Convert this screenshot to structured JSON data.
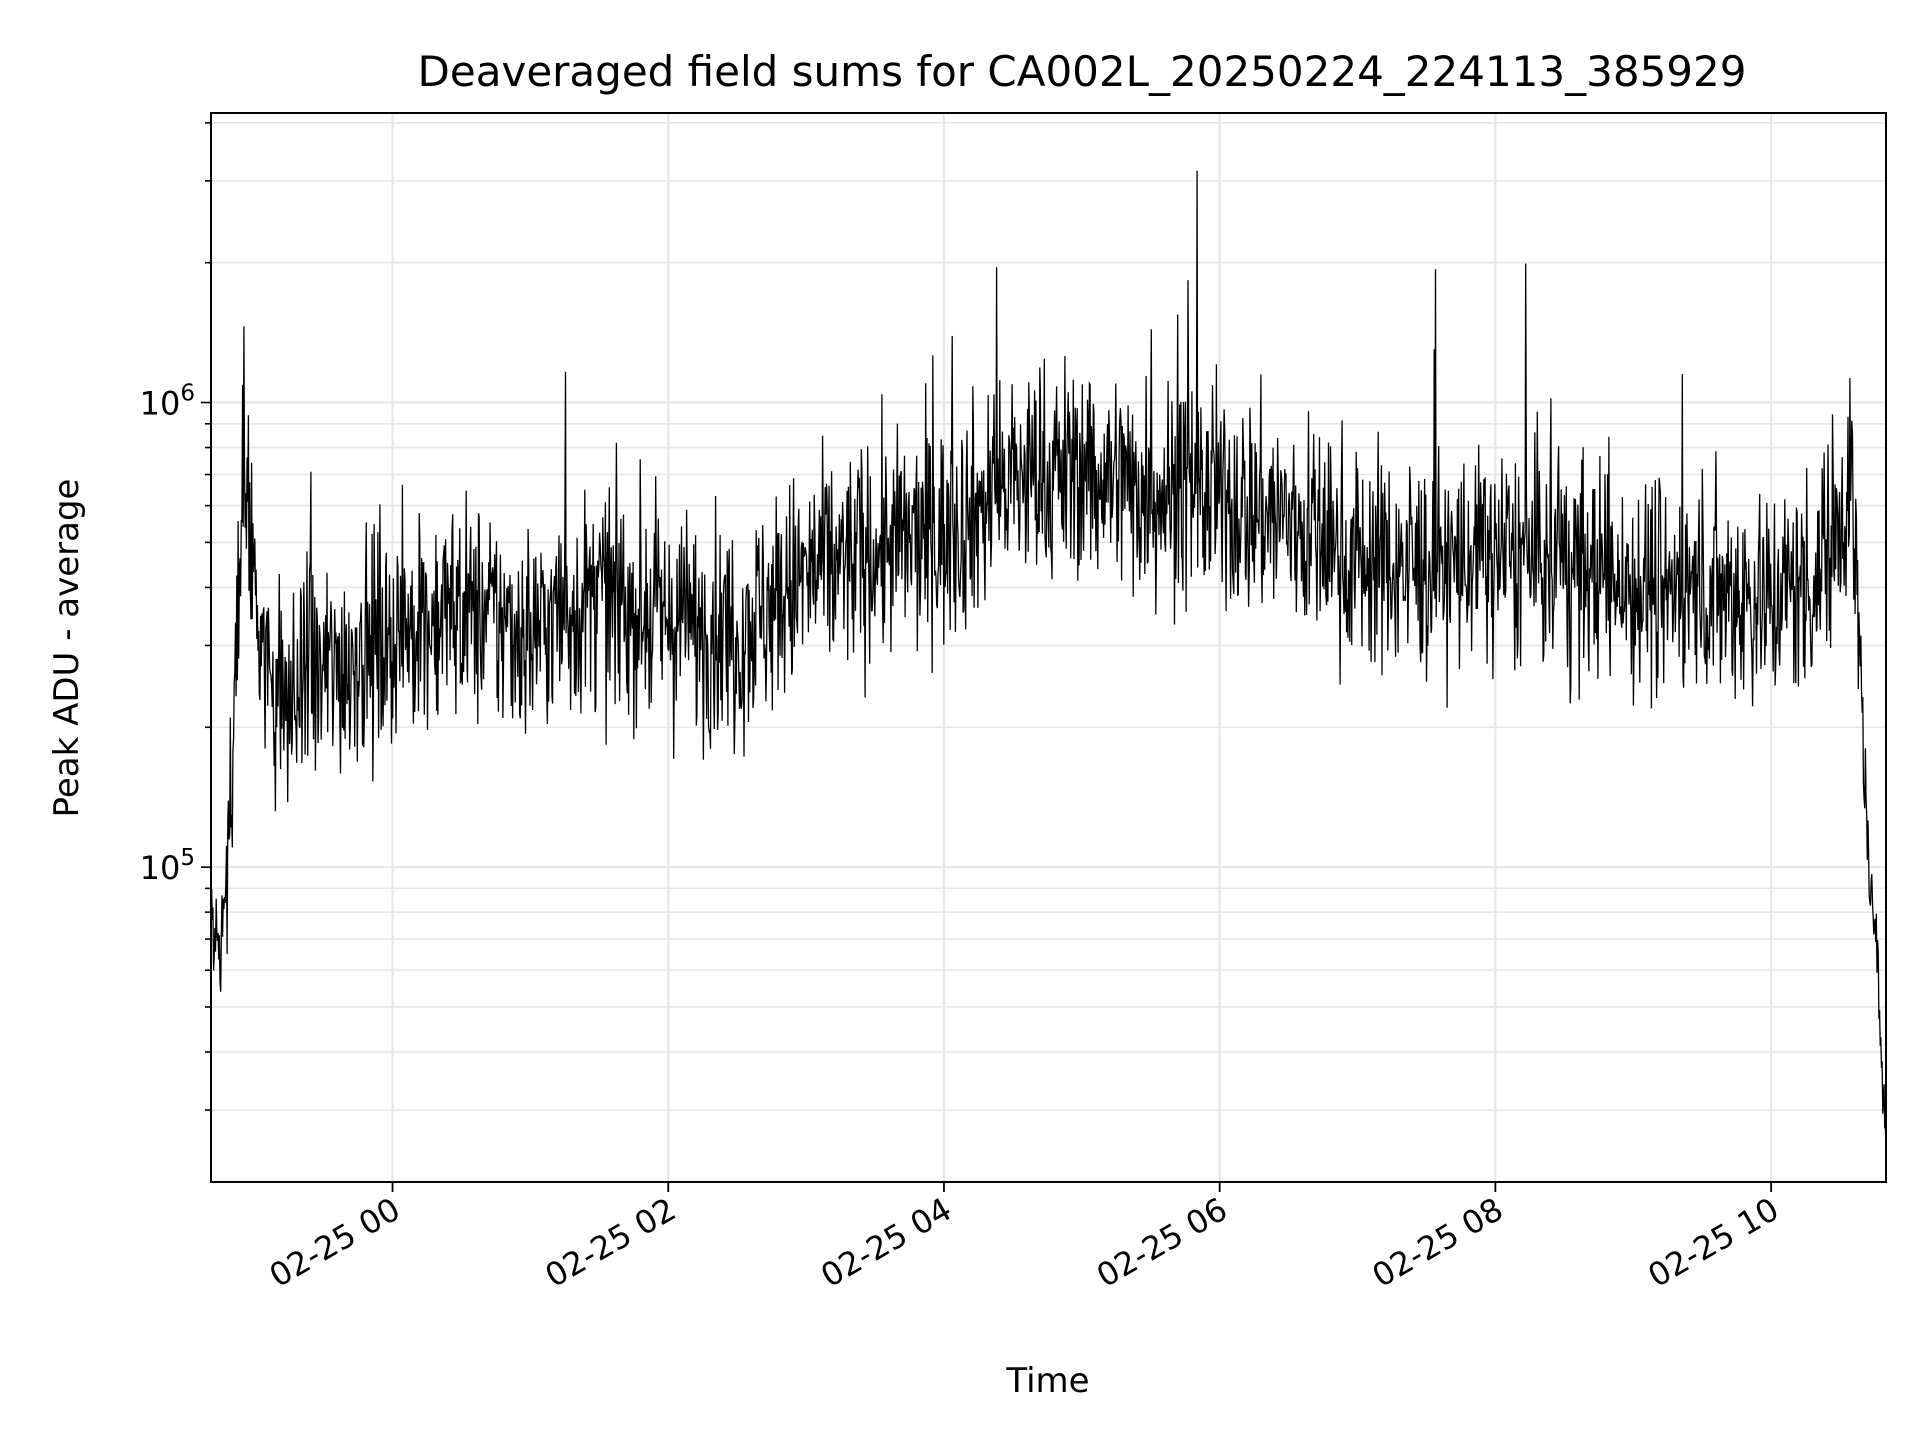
{
  "chart_data": {
    "type": "line",
    "title": "Deaveraged field sums for CA002L_20250224_224113_385929",
    "xlabel": "Time",
    "ylabel": "Peak ADU - average",
    "yscale": "log",
    "ylim": [
      21000,
      4200000
    ],
    "xlim": [
      "2025-02-24 22:41",
      "2025-02-25 10:50"
    ],
    "grid": true,
    "line_color": "#000000",
    "grid_color": "#e6e6e6",
    "x_ticks": [
      {
        "value": "2025-02-25 00:00",
        "label": "02-25 00"
      },
      {
        "value": "2025-02-25 02:00",
        "label": "02-25 02"
      },
      {
        "value": "2025-02-25 04:00",
        "label": "02-25 04"
      },
      {
        "value": "2025-02-25 06:00",
        "label": "02-25 06"
      },
      {
        "value": "2025-02-25 08:00",
        "label": "02-25 08"
      },
      {
        "value": "2025-02-25 10:00",
        "label": "02-25 10"
      }
    ],
    "y_ticks": [
      {
        "value": 100000,
        "label": "10",
        "exponent": "5"
      },
      {
        "value": 1000000,
        "label": "10",
        "exponent": "6"
      }
    ],
    "series": [
      {
        "x": [
          "2025-02-24 22:41",
          "2025-02-24 22:45",
          "2025-02-24 22:50",
          "2025-02-24 22:55",
          "2025-02-24 23:00",
          "2025-02-24 23:05",
          "2025-02-24 23:15",
          "2025-02-24 23:30",
          "2025-02-24 23:45",
          "2025-02-25 00:00",
          "2025-02-25 00:30",
          "2025-02-25 01:00",
          "2025-02-25 01:30",
          "2025-02-25 02:00",
          "2025-02-25 02:30",
          "2025-02-25 03:00",
          "2025-02-25 03:30",
          "2025-02-25 04:00",
          "2025-02-25 04:30",
          "2025-02-25 05:00",
          "2025-02-25 05:30",
          "2025-02-25 06:00",
          "2025-02-25 06:30",
          "2025-02-25 07:00",
          "2025-02-25 07:30",
          "2025-02-25 08:00",
          "2025-02-25 08:30",
          "2025-02-25 09:00",
          "2025-02-25 09:30",
          "2025-02-25 10:00",
          "2025-02-25 10:20",
          "2025-02-25 10:35",
          "2025-02-25 10:42",
          "2025-02-25 10:46",
          "2025-02-25 10:50"
        ],
        "y": [
          75000,
          65000,
          160000,
          850000,
          420000,
          260000,
          220000,
          260000,
          290000,
          320000,
          360000,
          320000,
          380000,
          340000,
          320000,
          420000,
          480000,
          520000,
          680000,
          720000,
          650000,
          620000,
          560000,
          460000,
          440000,
          470000,
          450000,
          410000,
          400000,
          380000,
          420000,
          700000,
          110000,
          60000,
          28000
        ]
      }
    ]
  }
}
